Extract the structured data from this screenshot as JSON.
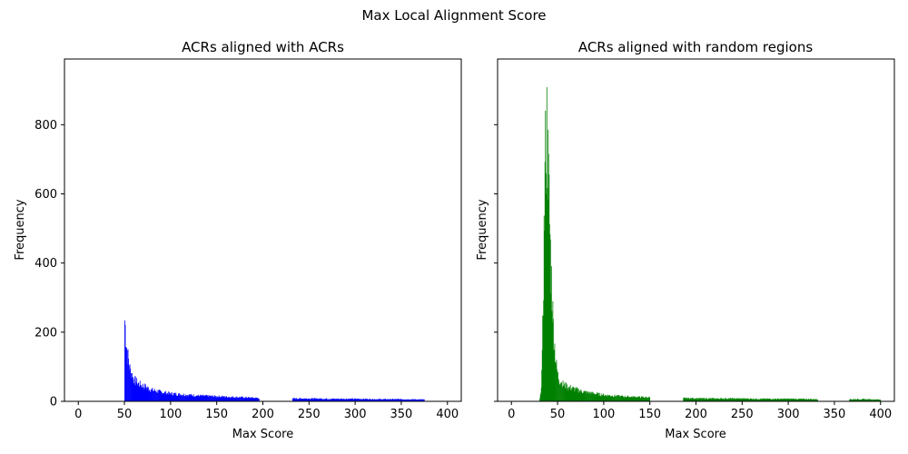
{
  "suptitle": "Max Local Alignment Score",
  "chart_data": [
    {
      "type": "bar",
      "subtype": "histogram",
      "title": "ACRs aligned with ACRs",
      "xlabel": "Max Score",
      "ylabel": "Frequency",
      "xlim": [
        -15,
        415
      ],
      "ylim": [
        0,
        990
      ],
      "xticks": [
        0,
        50,
        100,
        150,
        200,
        250,
        300,
        350,
        400
      ],
      "yticks": [
        0,
        200,
        400,
        600,
        800
      ],
      "color": "#0000ff",
      "bin_width": 1,
      "series": [
        {
          "segments": [
            {
              "x": [
                50,
                51,
                52,
                53,
                54,
                55,
                56,
                58,
                60,
                65,
                70,
                75,
                80,
                90,
                100,
                110,
                120,
                130,
                140,
                150,
                160,
                170,
                180,
                190,
                196
              ],
              "y": [
                235,
                195,
                160,
                135,
                118,
                100,
                88,
                75,
                62,
                50,
                44,
                38,
                32,
                26,
                22,
                20,
                18,
                16,
                15,
                14,
                13,
                12,
                11,
                10,
                9
              ]
            },
            {
              "x": [
                232,
                250,
                275,
                300,
                325,
                350,
                375
              ],
              "y": [
                8,
                8,
                7,
                7,
                6,
                6,
                5
              ]
            }
          ]
        }
      ]
    },
    {
      "type": "bar",
      "subtype": "histogram",
      "title": "ACRs aligned with random regions",
      "xlabel": "Max Score",
      "ylabel": "Frequency",
      "xlim": [
        -15,
        415
      ],
      "ylim": [
        0,
        990
      ],
      "xticks": [
        0,
        50,
        100,
        150,
        200,
        250,
        300,
        350,
        400
      ],
      "yticks": [
        0,
        200,
        400,
        600,
        800
      ],
      "color": "#008000",
      "bin_width": 1,
      "series": [
        {
          "segments": [
            {
              "x": [
                30,
                31,
                32,
                33,
                34,
                35,
                36,
                37,
                38,
                39,
                40,
                41,
                42,
                43,
                44,
                45,
                46,
                47,
                48,
                49,
                50,
                52,
                55,
                60,
                65,
                70,
                80,
                90,
                100,
                120,
                150
              ],
              "y": [
                2,
                15,
                50,
                120,
                280,
                470,
                640,
                750,
                790,
                720,
                620,
                520,
                430,
                350,
                280,
                220,
                175,
                140,
                110,
                90,
                75,
                60,
                50,
                42,
                38,
                33,
                26,
                22,
                18,
                14,
                11
              ]
            },
            {
              "x": [
                186,
                210,
                240,
                270,
                300,
                332
              ],
              "y": [
                9,
                8,
                8,
                7,
                7,
                6
              ]
            },
            {
              "x": [
                366,
                380,
                400
              ],
              "y": [
                6,
                6,
                5
              ]
            }
          ]
        }
      ]
    }
  ]
}
